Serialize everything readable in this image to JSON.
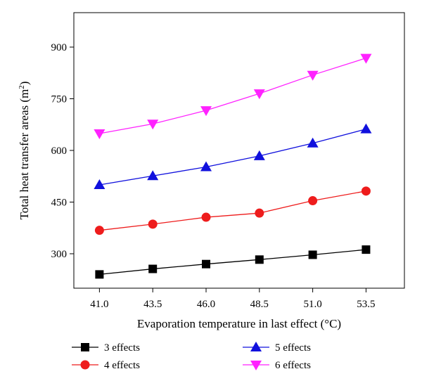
{
  "chart_data": {
    "type": "line",
    "xlabel": "Evaporation temperature in last effect (°C)",
    "ylabel": "Total heat transfer areas (m²)",
    "x": [
      41.0,
      43.5,
      46.0,
      48.5,
      51.0,
      53.5
    ],
    "x_tick_labels": [
      "41.0",
      "43.5",
      "46.0",
      "48.5",
      "51.0",
      "53.5"
    ],
    "y_ticks": [
      300,
      450,
      600,
      750,
      900
    ],
    "xlim": [
      39.8,
      55.3
    ],
    "ylim": [
      200,
      1000
    ],
    "grid": false,
    "legend_position": "bottom",
    "series": [
      {
        "name": "3 effects",
        "color": "#000000",
        "marker": "square",
        "values": [
          240,
          256,
          270,
          283,
          297,
          312
        ]
      },
      {
        "name": "4 effects",
        "color": "#ee1c1c",
        "marker": "circle",
        "values": [
          368,
          386,
          406,
          418,
          454,
          482
        ]
      },
      {
        "name": "5 effects",
        "color": "#1010dd",
        "marker": "triangle-up",
        "values": [
          500,
          526,
          552,
          584,
          621,
          662
        ]
      },
      {
        "name": "6 effects",
        "color": "#ff22ff",
        "marker": "triangle-down",
        "values": [
          649,
          677,
          716,
          765,
          819,
          868
        ]
      }
    ]
  }
}
